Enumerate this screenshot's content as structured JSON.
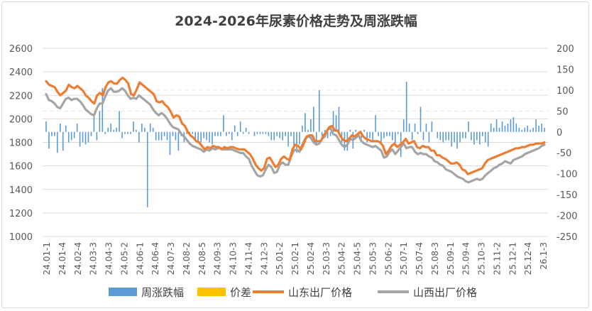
{
  "chart_data": {
    "type": "bar+line",
    "title": "2024-2026年尿素价格走势及周涨跌幅",
    "left_axis": {
      "ticks": [
        1000,
        1200,
        1400,
        1600,
        1800,
        2000,
        2200,
        2400,
        2600
      ],
      "range": [
        1000,
        2600
      ]
    },
    "right_axis": {
      "ticks": [
        -250,
        -200,
        -150,
        -100,
        -50,
        0,
        50,
        100,
        150,
        200
      ],
      "range": [
        -250,
        200
      ]
    },
    "x_tick_labels": [
      "24.01-1",
      "24.01-4",
      "24.02-4",
      "24.03-3",
      "24.04-3",
      "24.05-2",
      "24.06-1",
      "24.06-4",
      "24.07-3",
      "24.08-2",
      "24.08-5",
      "24.09-3",
      "24.10-3",
      "24.11-4",
      "24.12-3",
      "25.01-2",
      "25.02-1",
      "25.02-4",
      "25.03-3",
      "25.04-2",
      "25.04-5",
      "25.05-3",
      "25.06-2",
      "25.07-1",
      "25.07-4",
      "25.08-3",
      "25.09-1",
      "25.09-4",
      "25.10-3",
      "25.11-2",
      "25.12-1",
      "25.12-4",
      "26.1-3"
    ],
    "legend": {
      "position": "bottom",
      "items": [
        "周涨跌幅",
        "价差",
        "山东出厂价格",
        "山西出厂价格"
      ]
    },
    "colors": {
      "bars": "#5b9bd5",
      "diff": "#ffc000",
      "shandong": "#ed7d31",
      "shanxi": "#a5a5a5",
      "gridline": "#d9d9d9",
      "text": "#595959"
    },
    "series": [
      {
        "name": "周涨跌幅",
        "axis": "right",
        "values": [
          25,
          -40,
          -10,
          -10,
          -50,
          20,
          -45,
          15,
          -25,
          -20,
          -15,
          20,
          -35,
          -25,
          -30,
          -25,
          -10,
          40,
          -20,
          50,
          105,
          -5,
          10,
          20,
          5,
          10,
          50,
          -15,
          -5,
          -5,
          -5,
          25,
          5,
          -25,
          20,
          10,
          -180,
          20,
          10,
          -20,
          -20,
          -20,
          -10,
          -20,
          -55,
          -10,
          -20,
          -45,
          -10,
          -25,
          -5,
          -10,
          -5,
          -20,
          -25,
          -25,
          -15,
          -20,
          -25,
          -30,
          -10,
          -10,
          -10,
          40,
          -10,
          -5,
          -20,
          15,
          -10,
          25,
          -5,
          10,
          -5,
          0,
          -10,
          -5,
          -5,
          -5,
          -5,
          -10,
          -20,
          -20,
          -10,
          -15,
          -20,
          -10,
          -35,
          -10,
          -40,
          -50,
          -30,
          15,
          45,
          5,
          30,
          60,
          -30,
          100,
          -10,
          5,
          -15,
          -10,
          50,
          40,
          60,
          -25,
          -45,
          -45,
          5,
          -40,
          5,
          -5,
          -15,
          5,
          -25,
          -15,
          -25,
          40,
          -10,
          -25,
          -15,
          -10,
          -10,
          -20,
          -35,
          -5,
          -60,
          30,
          120,
          20,
          -20,
          20,
          -5,
          60,
          -20,
          20,
          -25,
          25,
          0,
          -15,
          -20,
          -25,
          -20,
          -20,
          -35,
          -25,
          -40,
          -25,
          -15,
          -15,
          25,
          -20,
          -30,
          -20,
          -30,
          -10,
          -25,
          -35,
          20,
          10,
          30,
          10,
          25,
          15,
          20,
          30,
          35,
          20,
          10,
          5,
          10,
          15,
          5,
          10,
          30,
          15,
          20,
          10
        ]
      },
      {
        "name": "山东出厂价格",
        "axis": "left",
        "values": [
          2320,
          2290,
          2280,
          2270,
          2230,
          2200,
          2220,
          2240,
          2290,
          2270,
          2260,
          2280,
          2260,
          2240,
          2200,
          2180,
          2150,
          2130,
          2200,
          2220,
          2200,
          2270,
          2310,
          2320,
          2300,
          2300,
          2330,
          2350,
          2330,
          2300,
          2210,
          2200,
          2250,
          2310,
          2290,
          2270,
          2250,
          2230,
          2210,
          2150,
          2140,
          2150,
          2120,
          2100,
          2060,
          2010,
          2030,
          2020,
          1960,
          1940,
          1890,
          1860,
          1840,
          1810,
          1800,
          1770,
          1740,
          1760,
          1750,
          1770,
          1760,
          1760,
          1740,
          1760,
          1750,
          1760,
          1760,
          1750,
          1740,
          1740,
          1740,
          1720,
          1700,
          1660,
          1610,
          1580,
          1560,
          1580,
          1660,
          1670,
          1630,
          1590,
          1610,
          1660,
          1680,
          1660,
          1650,
          1740,
          1780,
          1770,
          1740,
          1790,
          1850,
          1860,
          1860,
          1810,
          1810,
          1810,
          1860,
          1890,
          1930,
          1940,
          1900,
          1900,
          1850,
          1820,
          1810,
          1830,
          1860,
          1850,
          1870,
          1890,
          1850,
          1830,
          1820,
          1810,
          1810,
          1810,
          1800,
          1770,
          1700,
          1730,
          1770,
          1790,
          1760,
          1780,
          1800,
          1830,
          1790,
          1800,
          1810,
          1760,
          1750,
          1770,
          1760,
          1760,
          1730,
          1730,
          1690,
          1690,
          1670,
          1660,
          1640,
          1620,
          1620,
          1630,
          1610,
          1570,
          1560,
          1530,
          1540,
          1550,
          1560,
          1570,
          1580,
          1620,
          1650,
          1660,
          1670,
          1680,
          1690,
          1700,
          1710,
          1720,
          1730,
          1740,
          1750,
          1750,
          1760,
          1760,
          1770,
          1780,
          1780,
          1790,
          1790,
          1790,
          1800
        ]
      },
      {
        "name": "山西出厂价格",
        "axis": "left",
        "values": [
          2210,
          2160,
          2150,
          2130,
          2100,
          2090,
          2130,
          2170,
          2180,
          2160,
          2170,
          2170,
          2150,
          2120,
          2080,
          2060,
          2040,
          2030,
          2090,
          2130,
          2130,
          2190,
          2240,
          2260,
          2230,
          2230,
          2240,
          2260,
          2240,
          2200,
          2170,
          2180,
          2170,
          2200,
          2180,
          2160,
          2140,
          2120,
          2080,
          2050,
          2030,
          2050,
          2030,
          2000,
          1960,
          1930,
          1920,
          1910,
          1870,
          1850,
          1820,
          1790,
          1770,
          1760,
          1750,
          1740,
          1720,
          1740,
          1730,
          1750,
          1740,
          1750,
          1750,
          1740,
          1740,
          1740,
          1740,
          1730,
          1720,
          1710,
          1710,
          1680,
          1660,
          1600,
          1560,
          1520,
          1510,
          1520,
          1570,
          1610,
          1590,
          1540,
          1550,
          1610,
          1630,
          1610,
          1610,
          1680,
          1730,
          1740,
          1720,
          1780,
          1830,
          1850,
          1840,
          1800,
          1780,
          1790,
          1830,
          1850,
          1910,
          1920,
          1870,
          1860,
          1820,
          1780,
          1760,
          1780,
          1830,
          1820,
          1840,
          1860,
          1810,
          1790,
          1780,
          1770,
          1760,
          1770,
          1750,
          1730,
          1670,
          1680,
          1720,
          1740,
          1700,
          1730,
          1760,
          1790,
          1750,
          1760,
          1760,
          1720,
          1700,
          1710,
          1700,
          1700,
          1680,
          1670,
          1640,
          1630,
          1610,
          1600,
          1570,
          1560,
          1550,
          1530,
          1510,
          1500,
          1490,
          1470,
          1460,
          1470,
          1480,
          1490,
          1480,
          1490,
          1520,
          1540,
          1560,
          1580,
          1590,
          1610,
          1620,
          1640,
          1630,
          1620,
          1650,
          1660,
          1670,
          1680,
          1700,
          1710,
          1720,
          1730,
          1740,
          1750,
          1770,
          1780
        ]
      },
      {
        "name": "价差",
        "axis": "right",
        "values": []
      }
    ]
  }
}
